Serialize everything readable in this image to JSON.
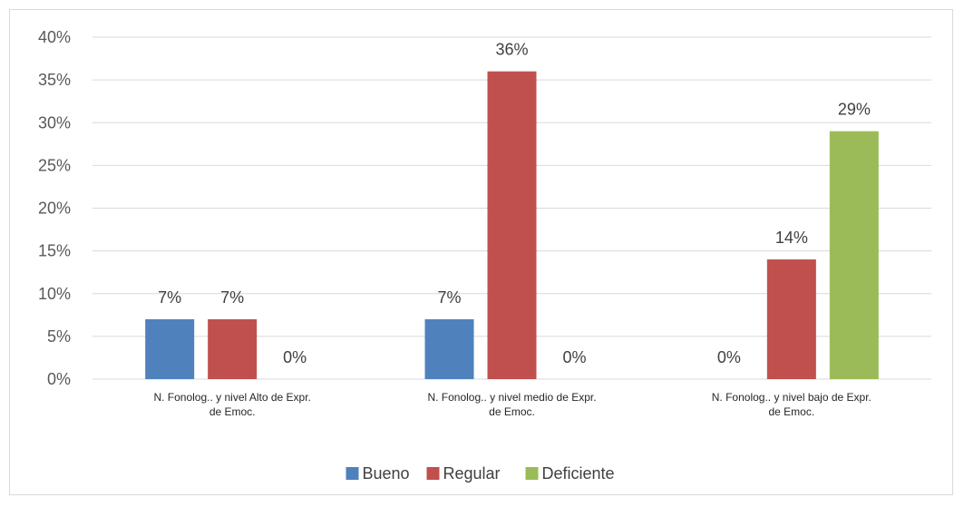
{
  "chart_data": {
    "type": "bar",
    "title": "",
    "xlabel": "",
    "ylabel": "",
    "ylim": [
      0,
      40
    ],
    "y_ticks": [
      "0%",
      "5%",
      "10%",
      "15%",
      "20%",
      "25%",
      "30%",
      "35%",
      "40%"
    ],
    "grid": true,
    "legend_position": "bottom",
    "categories": [
      [
        "N. Fonolog.. y nivel Alto de  Expr.",
        "de Emoc."
      ],
      [
        "N. Fonolog.. y nivel medio de  Expr.",
        "de Emoc."
      ],
      [
        "N. Fonolog.. y nivel bajo de  Expr.",
        "de Emoc."
      ]
    ],
    "series": [
      {
        "name": "Bueno",
        "color": "#4f81bd",
        "values": [
          7,
          7,
          0
        ],
        "labels": [
          "7%",
          "7%",
          "0%"
        ]
      },
      {
        "name": "Regular",
        "color": "#c0504d",
        "values": [
          7,
          36,
          14
        ],
        "labels": [
          "7%",
          "36%",
          "14%"
        ]
      },
      {
        "name": "Deficiente",
        "color": "#9bbb59",
        "values": [
          0,
          0,
          29
        ],
        "labels": [
          "0%",
          "0%",
          "29%"
        ]
      }
    ]
  }
}
